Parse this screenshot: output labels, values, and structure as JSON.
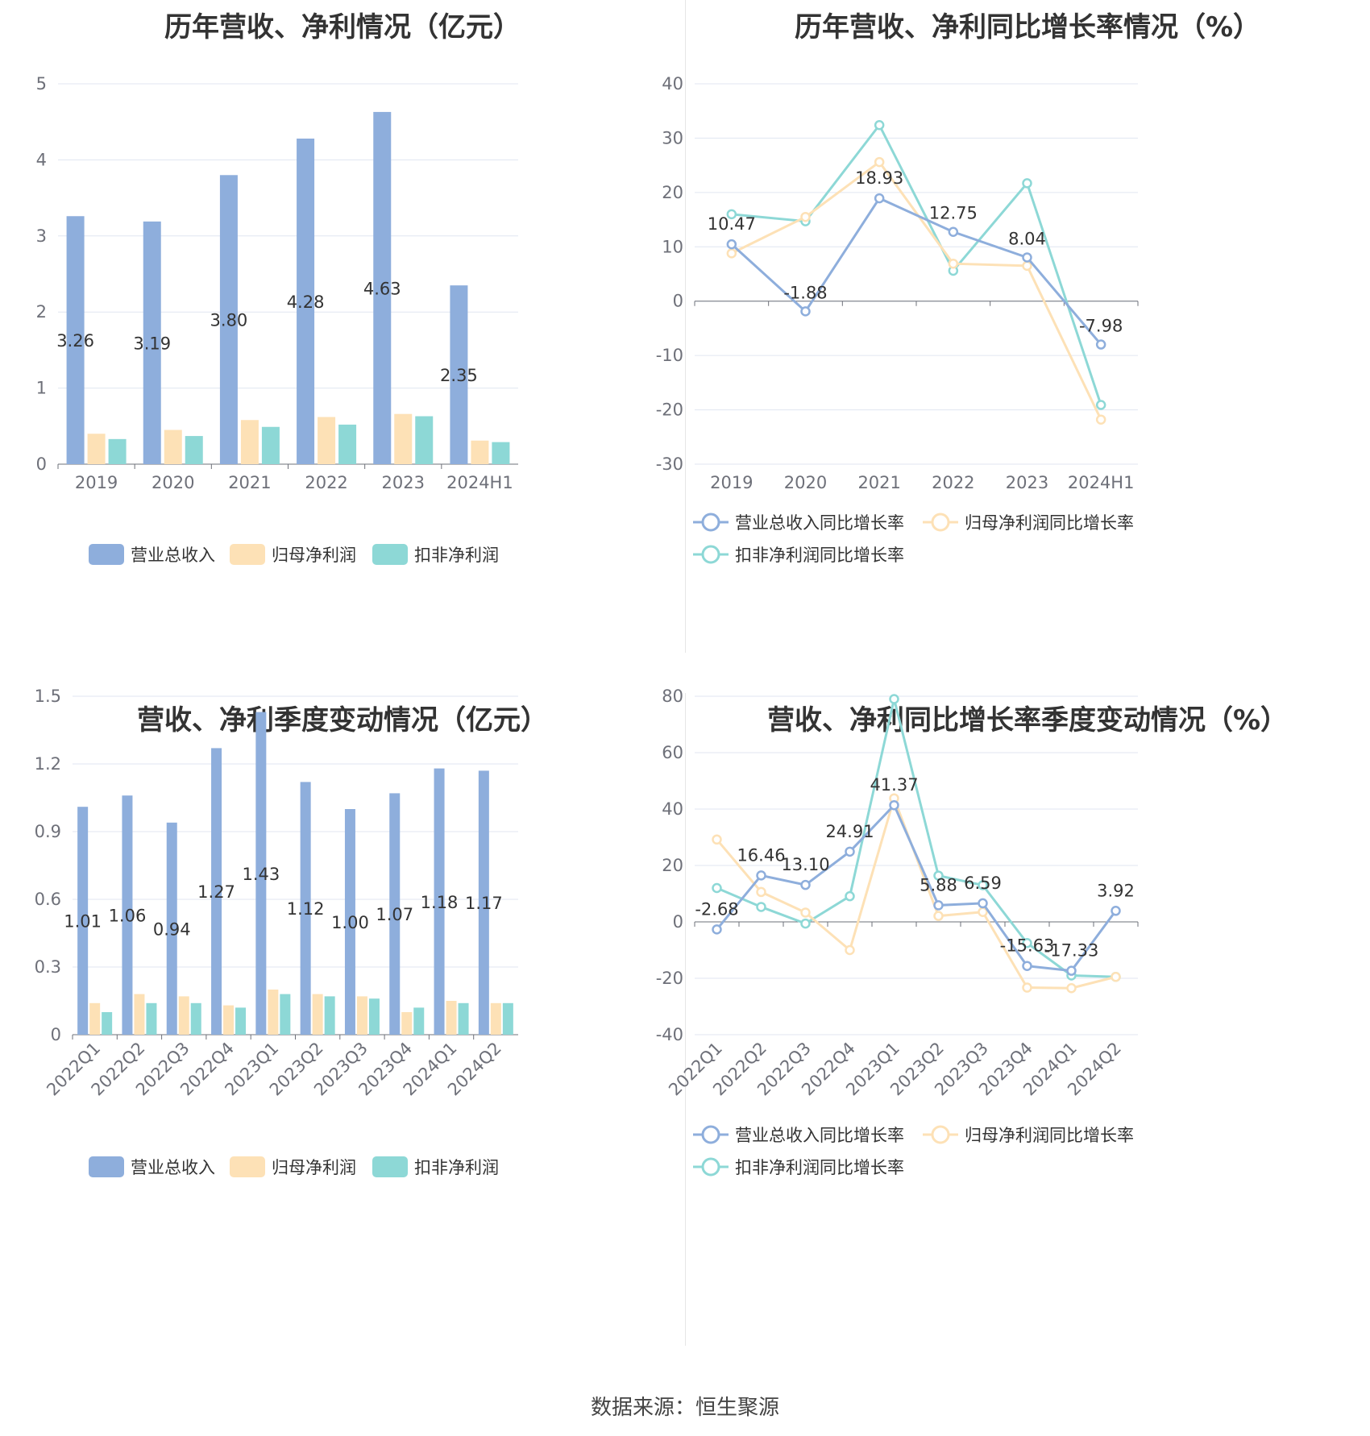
{
  "footer": {
    "source": "数据来源：恒生聚源"
  },
  "colors": {
    "revenue": "#8eaedc",
    "net_profit": "#fde1b6",
    "deducted": "#8dd8d6",
    "grid": "#e0e6f1",
    "axis": "#6e7079"
  },
  "panels": [
    {
      "title": "历年营收、净利情况（亿元）"
    },
    {
      "title": "历年营收、净利同比增长率情况（%）"
    },
    {
      "title": "营收、净利季度变动情况（亿元）"
    },
    {
      "title": "营收、净利同比增长率季度变动情况（%）"
    }
  ],
  "chart_data": [
    {
      "type": "bar",
      "title": "历年营收、净利情况（亿元）",
      "categories": [
        "2019",
        "2020",
        "2021",
        "2022",
        "2023",
        "2024H1"
      ],
      "series": [
        {
          "name": "营业总收入",
          "values": [
            3.26,
            3.19,
            3.8,
            4.28,
            4.63,
            2.35
          ],
          "labels": [
            "3.26",
            "3.19",
            "3.80",
            "4.28",
            "4.63",
            "2.35"
          ]
        },
        {
          "name": "归母净利润",
          "values": [
            0.4,
            0.45,
            0.58,
            0.62,
            0.66,
            0.31
          ]
        },
        {
          "name": "扣非净利润",
          "values": [
            0.33,
            0.37,
            0.49,
            0.52,
            0.63,
            0.29
          ]
        }
      ],
      "ylim": [
        0,
        5
      ],
      "yticks": [
        "0",
        "1",
        "2",
        "3",
        "4",
        "5"
      ],
      "grid": true,
      "legend": "bottom"
    },
    {
      "type": "line",
      "title": "历年营收、净利同比增长率情况（%）",
      "categories": [
        "2019",
        "2020",
        "2021",
        "2022",
        "2023",
        "2024H1"
      ],
      "series": [
        {
          "name": "营业总收入同比增长率",
          "values": [
            10.47,
            -1.88,
            18.93,
            12.75,
            8.04,
            -7.98
          ],
          "labels": [
            "10.47",
            "-1.88",
            "18.93",
            "12.75",
            "8.04",
            "-7.98"
          ]
        },
        {
          "name": "归母净利润同比增长率",
          "values": [
            8.8,
            15.5,
            25.6,
            6.9,
            6.5,
            -21.8
          ]
        },
        {
          "name": "扣非净利润同比增长率",
          "values": [
            16.0,
            14.7,
            32.4,
            5.6,
            21.7,
            -19.1
          ]
        }
      ],
      "ylim": [
        -30,
        40
      ],
      "yticks": [
        "-30",
        "-20",
        "-10",
        "0",
        "10",
        "20",
        "30",
        "40"
      ],
      "grid": true,
      "legend": "bottom"
    },
    {
      "type": "bar",
      "title": "营收、净利季度变动情况（亿元）",
      "categories": [
        "2022Q1",
        "2022Q2",
        "2022Q3",
        "2022Q4",
        "2023Q1",
        "2023Q2",
        "2023Q3",
        "2023Q4",
        "2024Q1",
        "2024Q2"
      ],
      "series": [
        {
          "name": "营业总收入",
          "values": [
            1.01,
            1.06,
            0.94,
            1.27,
            1.43,
            1.12,
            1.0,
            1.07,
            1.18,
            1.17
          ],
          "labels": [
            "1.01",
            "1.06",
            "0.94",
            "1.27",
            "1.43",
            "1.12",
            "1.00",
            "1.07",
            "1.18",
            "1.17"
          ]
        },
        {
          "name": "归母净利润",
          "values": [
            0.14,
            0.18,
            0.17,
            0.13,
            0.2,
            0.18,
            0.17,
            0.1,
            0.15,
            0.14
          ]
        },
        {
          "name": "扣非净利润",
          "values": [
            0.1,
            0.14,
            0.14,
            0.12,
            0.18,
            0.17,
            0.16,
            0.12,
            0.14,
            0.14
          ]
        }
      ],
      "ylim": [
        0,
        1.5
      ],
      "yticks": [
        "0",
        "0.3",
        "0.6",
        "0.9",
        "1.2",
        "1.5"
      ],
      "grid": true,
      "legend": "bottom"
    },
    {
      "type": "line",
      "title": "营收、净利同比增长率季度变动情况（%）",
      "categories": [
        "2022Q1",
        "2022Q2",
        "2022Q3",
        "2022Q4",
        "2023Q1",
        "2023Q2",
        "2023Q3",
        "2023Q4",
        "2024Q1",
        "2024Q2"
      ],
      "series": [
        {
          "name": "营业总收入同比增长率",
          "values": [
            -2.68,
            16.46,
            13.1,
            24.91,
            41.37,
            5.88,
            6.59,
            -15.63,
            -17.33,
            3.92
          ],
          "labels": [
            "-2.68",
            "16.46",
            "13.10",
            "24.91",
            "41.37",
            "5.88",
            "6.59",
            "-15.63",
            "-17.33",
            "3.92"
          ]
        },
        {
          "name": "归母净利润同比增长率",
          "values": [
            29.2,
            10.6,
            3.3,
            -10.0,
            43.8,
            2.1,
            3.5,
            -23.3,
            -23.5,
            -19.5
          ]
        },
        {
          "name": "扣非净利润同比增长率",
          "values": [
            12.0,
            5.3,
            -0.6,
            9.1,
            79.0,
            16.4,
            13.0,
            -7.5,
            -19.0,
            -19.5
          ]
        }
      ],
      "ylim": [
        -40,
        80
      ],
      "yticks": [
        "-40",
        "-20",
        "0",
        "20",
        "40",
        "60",
        "80"
      ],
      "grid": true,
      "legend": "bottom"
    }
  ]
}
